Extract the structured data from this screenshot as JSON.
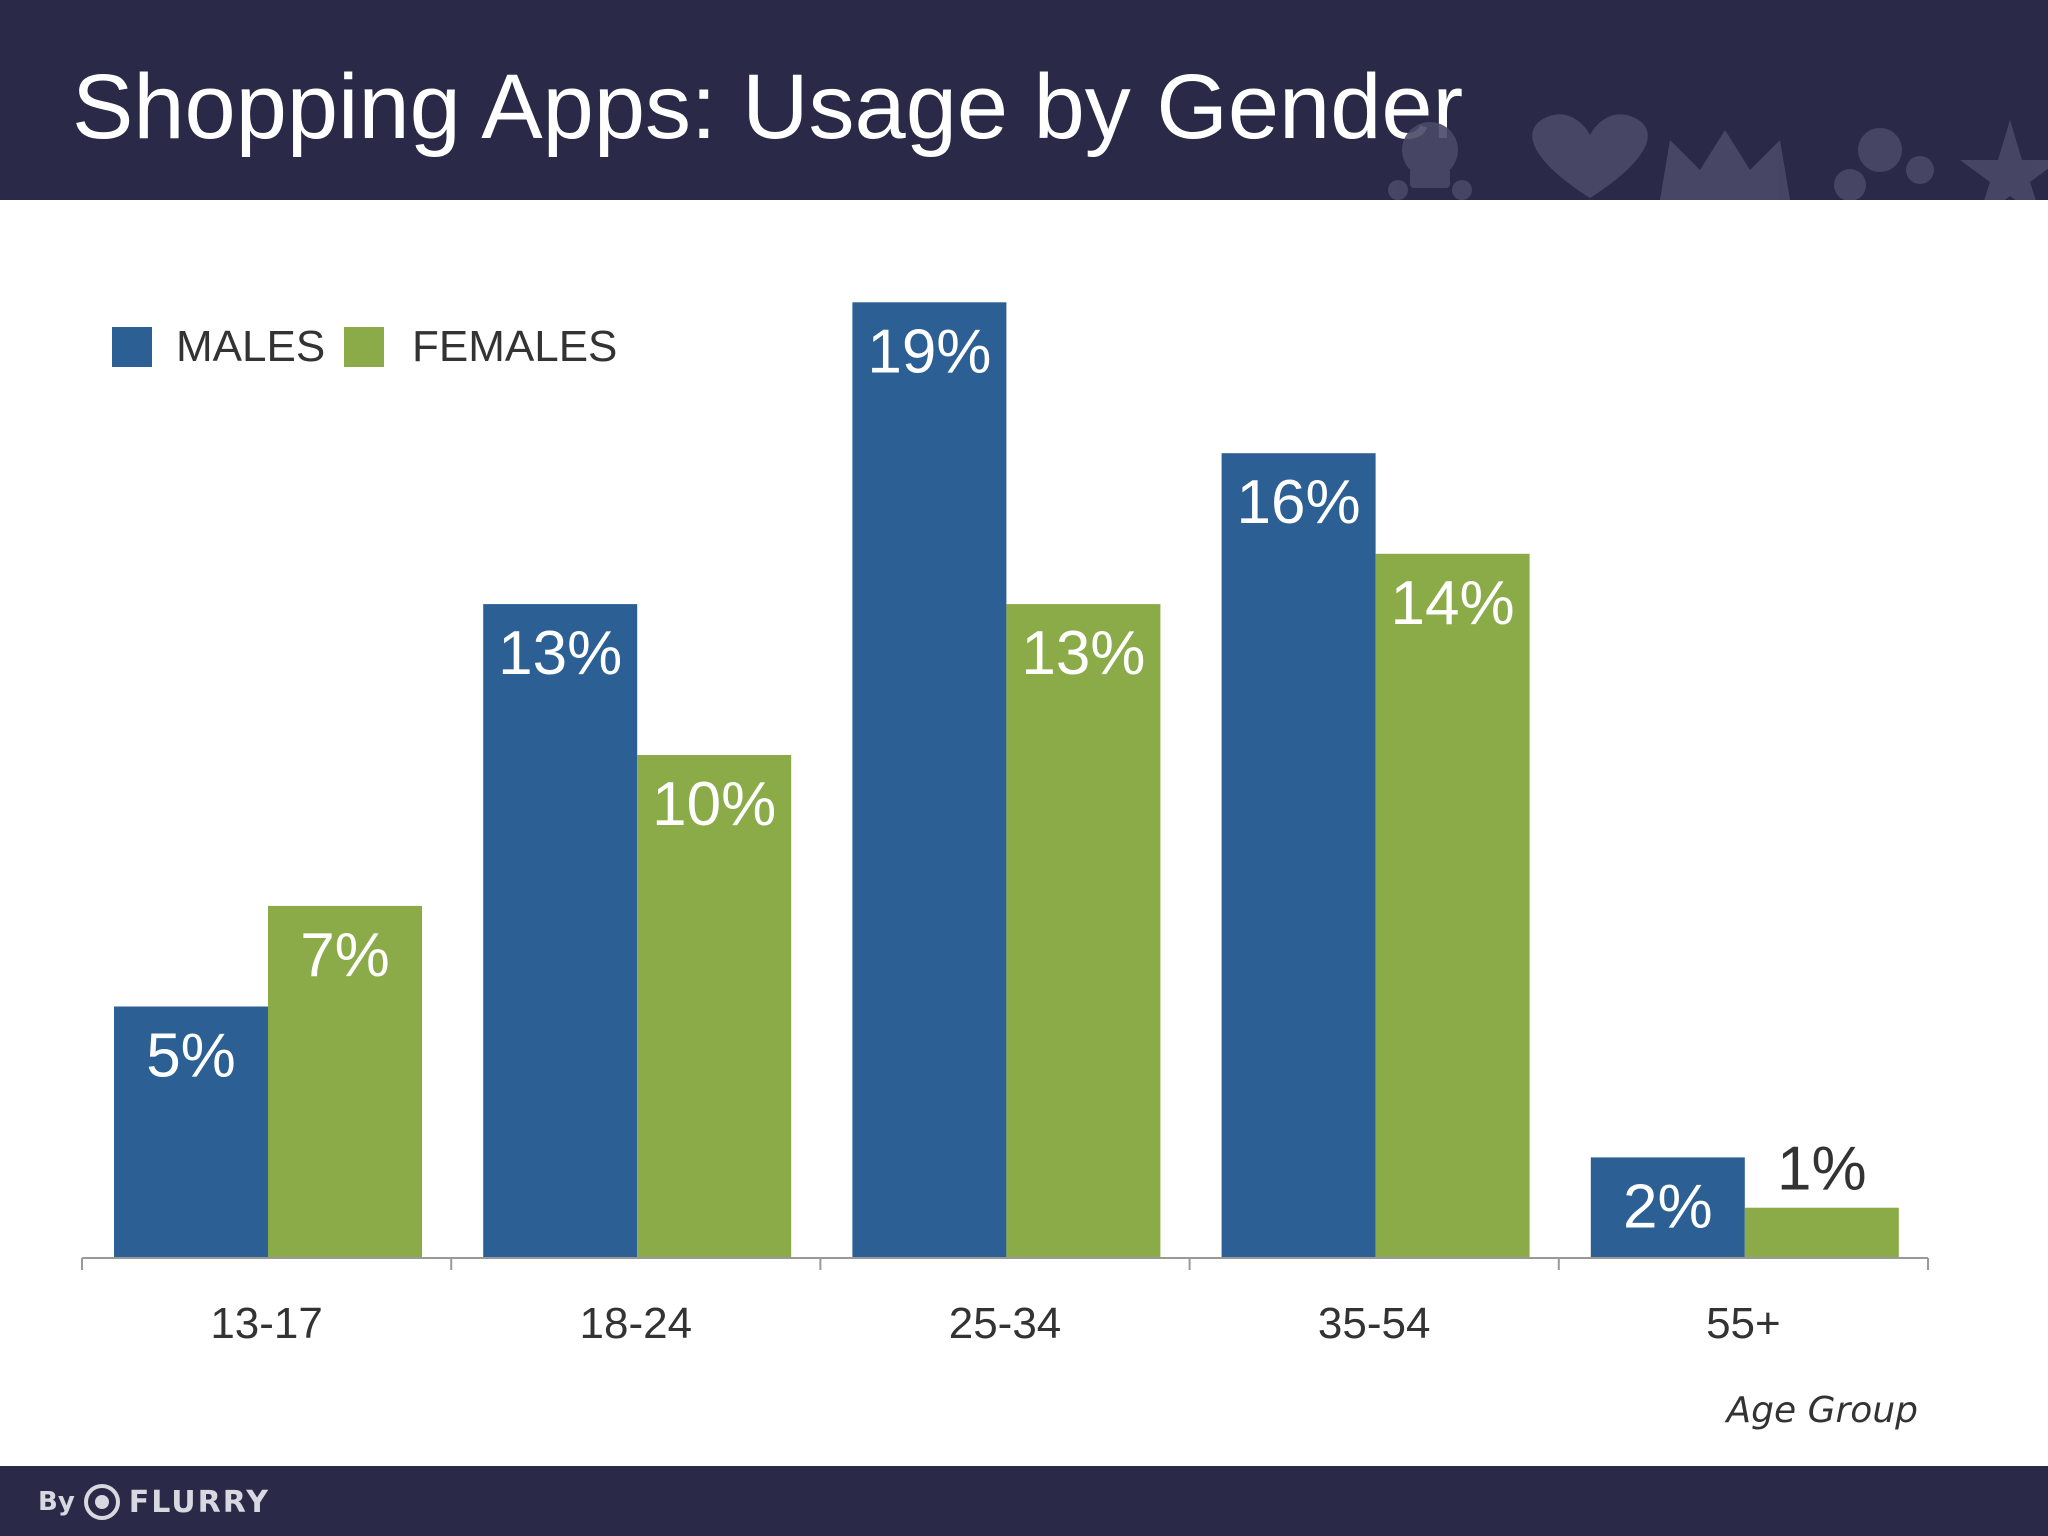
{
  "slide": {
    "title": "Shopping Apps: Usage by Gender",
    "brand": {
      "prefix": "By",
      "name": "FLURRY"
    }
  },
  "colors": {
    "header_bg": "#2a2a48",
    "males": "#2c5f93",
    "females": "#8aab48",
    "axis": "#999999",
    "text": "#333333"
  },
  "chart_data": {
    "type": "bar",
    "title": "Shopping Apps: Usage by Gender",
    "xlabel": "Age Group",
    "ylabel": "",
    "categories": [
      "13-17",
      "18-24",
      "25-34",
      "35-54",
      "55+"
    ],
    "series": [
      {
        "name": "MALES",
        "color": "#2c5f93",
        "values": [
          5,
          13,
          19,
          16,
          2
        ],
        "labels": [
          "5%",
          "13%",
          "19%",
          "16%",
          "2%"
        ]
      },
      {
        "name": "FEMALES",
        "color": "#8aab48",
        "values": [
          7,
          10,
          13,
          14,
          1
        ],
        "labels": [
          "7%",
          "10%",
          "13%",
          "14%",
          "1%"
        ]
      }
    ],
    "ylim": [
      0,
      19
    ],
    "grid": false,
    "legend_position": "top-left"
  }
}
